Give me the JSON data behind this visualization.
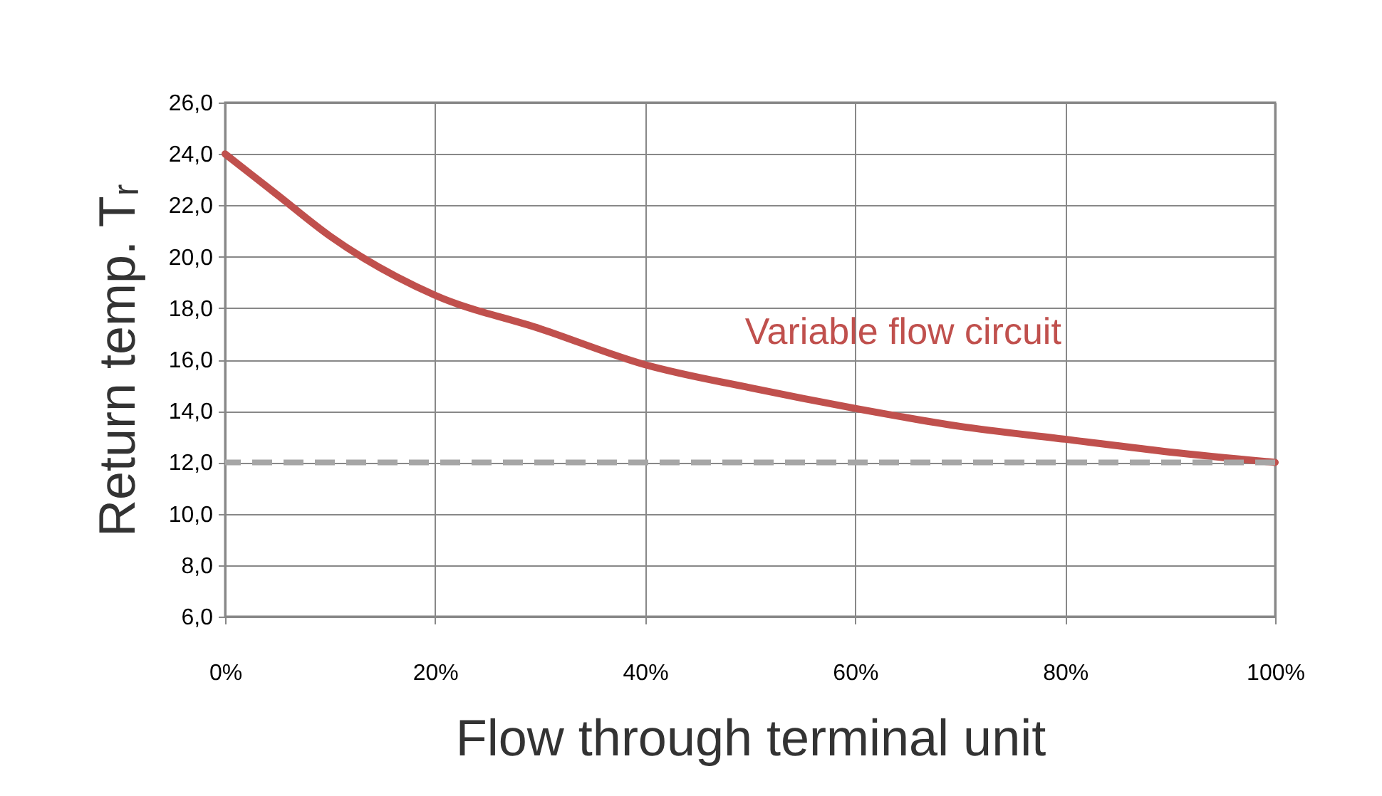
{
  "chart_data": {
    "type": "line",
    "xlabel": "Flow through terminal unit",
    "ylabel": "Return temp. Tᵣ",
    "x": [
      0,
      5,
      10,
      20,
      30,
      40,
      50,
      60,
      70,
      80,
      90,
      100
    ],
    "series": [
      {
        "name": "Variable flow circuit",
        "color": "#c0504d",
        "values": [
          24.0,
          22.4,
          20.8,
          18.5,
          17.2,
          15.8,
          14.9,
          14.1,
          13.4,
          12.9,
          12.4,
          12.0
        ]
      }
    ],
    "xlim": [
      0,
      100
    ],
    "xticks": [
      {
        "value": 0,
        "label": "0%"
      },
      {
        "value": 20,
        "label": "20%"
      },
      {
        "value": 40,
        "label": "40%"
      },
      {
        "value": 60,
        "label": "60%"
      },
      {
        "value": 80,
        "label": "80%"
      },
      {
        "value": 100,
        "label": "100%"
      }
    ],
    "ylim": [
      6,
      26
    ],
    "yticks": [
      {
        "value": 6,
        "label": "6,0"
      },
      {
        "value": 8,
        "label": "8,0"
      },
      {
        "value": 10,
        "label": "10,0"
      },
      {
        "value": 12,
        "label": "12,0"
      },
      {
        "value": 14,
        "label": "14,0"
      },
      {
        "value": 16,
        "label": "16,0"
      },
      {
        "value": 18,
        "label": "18,0"
      },
      {
        "value": 20,
        "label": "20,0"
      },
      {
        "value": 22,
        "label": "22,0"
      },
      {
        "value": 24,
        "label": "24,0"
      },
      {
        "value": 26,
        "label": "26,0"
      }
    ],
    "ref_lines": [
      {
        "axis": "y",
        "value": 12,
        "color": "#a6a6a6",
        "line_style": "dashed"
      }
    ],
    "grid": true,
    "marker": "none",
    "line_style": "solid"
  }
}
